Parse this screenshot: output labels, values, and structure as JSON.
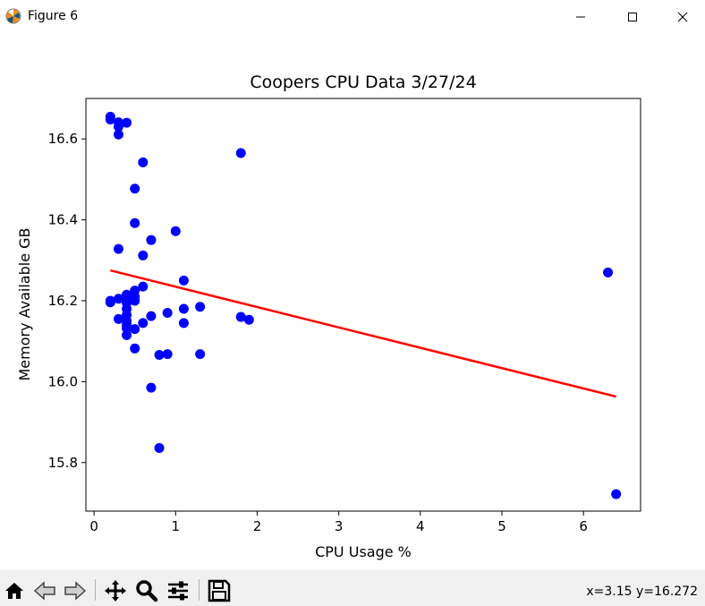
{
  "window": {
    "title": "Figure 6",
    "minimize_icon": "minimize-icon",
    "maximize_icon": "maximize-icon",
    "close_icon": "close-icon"
  },
  "toolbar": {
    "buttons": [
      "home-icon",
      "back-arrow-icon",
      "forward-arrow-icon",
      "pan-icon",
      "zoom-icon",
      "configure-subplots-icon",
      "save-icon"
    ],
    "coords": "x=3.15 y=16.272"
  },
  "colors": {
    "points": "#0000ff",
    "line": "#ff0000"
  },
  "chart_data": {
    "type": "scatter",
    "title": "Coopers CPU Data 3/27/24",
    "xlabel": "CPU Usage %",
    "ylabel": "Memory Available GB",
    "xlim": [
      -0.1,
      6.7
    ],
    "ylim": [
      15.68,
      16.7
    ],
    "xticks": [
      0,
      1,
      2,
      3,
      4,
      5,
      6
    ],
    "yticks": [
      15.8,
      16.0,
      16.2,
      16.4,
      16.6
    ],
    "ytick_labels": [
      "15.8",
      "16.0",
      "16.2",
      "16.4",
      "16.6"
    ],
    "grid": false,
    "points": [
      {
        "x": 0.2,
        "y": 16.655
      },
      {
        "x": 0.2,
        "y": 16.648
      },
      {
        "x": 0.3,
        "y": 16.641
      },
      {
        "x": 0.4,
        "y": 16.64
      },
      {
        "x": 0.3,
        "y": 16.63
      },
      {
        "x": 0.3,
        "y": 16.611
      },
      {
        "x": 0.6,
        "y": 16.542
      },
      {
        "x": 1.8,
        "y": 16.565
      },
      {
        "x": 0.5,
        "y": 16.477
      },
      {
        "x": 0.5,
        "y": 16.392
      },
      {
        "x": 1.0,
        "y": 16.372
      },
      {
        "x": 0.7,
        "y": 16.35
      },
      {
        "x": 0.3,
        "y": 16.328
      },
      {
        "x": 0.6,
        "y": 16.312
      },
      {
        "x": 6.3,
        "y": 16.27
      },
      {
        "x": 1.1,
        "y": 16.25
      },
      {
        "x": 0.6,
        "y": 16.235
      },
      {
        "x": 0.5,
        "y": 16.225
      },
      {
        "x": 0.4,
        "y": 16.215
      },
      {
        "x": 0.5,
        "y": 16.21
      },
      {
        "x": 0.3,
        "y": 16.205
      },
      {
        "x": 0.2,
        "y": 16.2
      },
      {
        "x": 0.4,
        "y": 16.2
      },
      {
        "x": 0.5,
        "y": 16.2
      },
      {
        "x": 0.2,
        "y": 16.196
      },
      {
        "x": 0.4,
        "y": 16.195
      },
      {
        "x": 1.3,
        "y": 16.185
      },
      {
        "x": 0.4,
        "y": 16.18
      },
      {
        "x": 1.1,
        "y": 16.18
      },
      {
        "x": 0.9,
        "y": 16.17
      },
      {
        "x": 0.4,
        "y": 16.165
      },
      {
        "x": 0.7,
        "y": 16.162
      },
      {
        "x": 1.8,
        "y": 16.16
      },
      {
        "x": 0.3,
        "y": 16.155
      },
      {
        "x": 1.9,
        "y": 16.153
      },
      {
        "x": 0.4,
        "y": 16.15
      },
      {
        "x": 0.6,
        "y": 16.145
      },
      {
        "x": 1.1,
        "y": 16.145
      },
      {
        "x": 0.4,
        "y": 16.14
      },
      {
        "x": 0.4,
        "y": 16.132
      },
      {
        "x": 0.5,
        "y": 16.13
      },
      {
        "x": 0.4,
        "y": 16.115
      },
      {
        "x": 0.5,
        "y": 16.082
      },
      {
        "x": 0.8,
        "y": 16.066
      },
      {
        "x": 0.9,
        "y": 16.068
      },
      {
        "x": 1.3,
        "y": 16.068
      },
      {
        "x": 0.7,
        "y": 15.985
      },
      {
        "x": 0.8,
        "y": 15.836
      },
      {
        "x": 6.4,
        "y": 15.722
      }
    ],
    "trendline": [
      {
        "x": 0.2,
        "y": 16.275
      },
      {
        "x": 6.4,
        "y": 15.963
      }
    ]
  }
}
